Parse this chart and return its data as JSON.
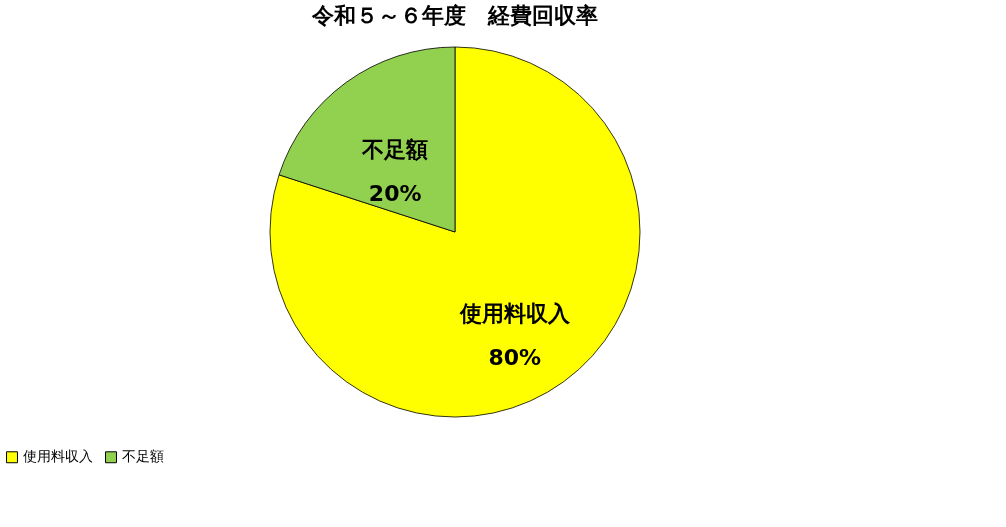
{
  "chart_data": {
    "type": "pie",
    "title": "令和５～６年度　経費回収率",
    "categories": [
      "使用料収入",
      "不足額"
    ],
    "values": [
      80,
      20
    ],
    "colors": [
      "#ffff00",
      "#92d050"
    ],
    "value_labels": [
      "80%",
      "20%"
    ],
    "legend": "bottom"
  }
}
